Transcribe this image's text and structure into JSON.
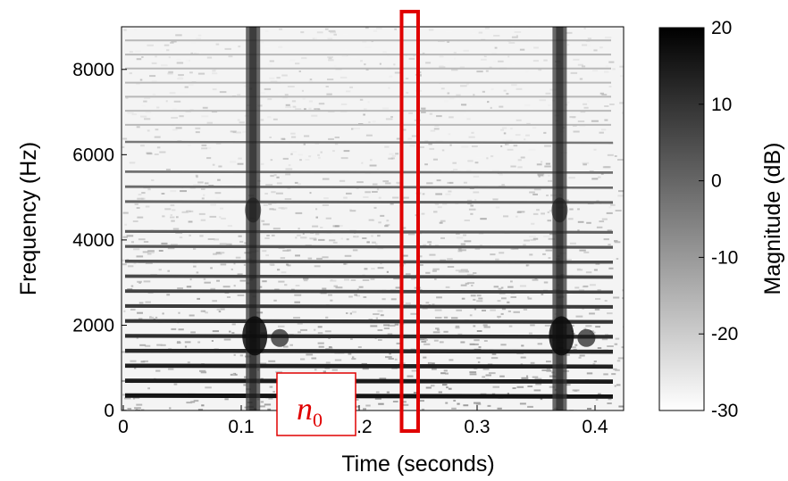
{
  "chart_data": {
    "type": "heatmap",
    "title": "",
    "xlabel": "Time (seconds)",
    "ylabel": "Frequency (Hz)",
    "xlim": [
      0,
      0.48
    ],
    "ylim": [
      0,
      9000
    ],
    "x_ticks": [
      0,
      0.1,
      0.2,
      0.3,
      0.4
    ],
    "x_tick_labels": [
      "0",
      "0.1",
      "0.2",
      "0.3",
      "0.4"
    ],
    "y_ticks": [
      0,
      2000,
      4000,
      6000,
      8000
    ],
    "y_tick_labels": [
      "0",
      "2000",
      "4000",
      "6000",
      "8000"
    ],
    "harmonic_frequencies_hz": [
      350,
      700,
      1050,
      1400,
      1750,
      2100,
      2450,
      2800,
      3150,
      3500,
      3850,
      4200,
      4900,
      5250,
      5600,
      6300
    ],
    "onset_times_s": [
      0.11,
      0.37
    ],
    "colorbar": {
      "label": "Magnitude (dB)",
      "range": [
        -30,
        20
      ],
      "ticks": [
        20,
        10,
        0,
        -10,
        -20,
        -30
      ],
      "tick_labels": [
        "20",
        "10",
        "0",
        "-10",
        "-20",
        "-30"
      ],
      "colormap": "gray (white = -30 dB, black = 20 dB)"
    },
    "annotations": {
      "frame_time_range_s": [
        0.236,
        0.25
      ],
      "frame_color": "#e00000",
      "label_main": "n",
      "label_sub": "0",
      "label_color": "#e00000"
    }
  }
}
